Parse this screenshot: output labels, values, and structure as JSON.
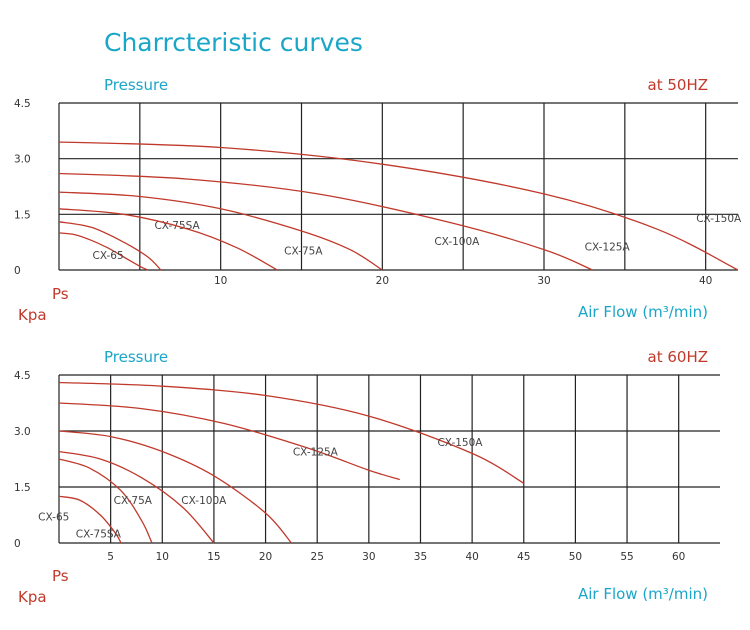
{
  "page_title": "Charrcteristic curves",
  "colors": {
    "title": "#1aa6c8",
    "axis_label_y_top": "#1aa6c8",
    "freq_label": "#c0392b",
    "unit_label": "#c0392b",
    "curve": "#c0392b",
    "grid": "#222222"
  },
  "chart_data": [
    {
      "type": "line",
      "freq_label": "at  50HZ",
      "ylabel": "Pressure",
      "ylabel_unit": "Ps",
      "ylabel_unit2": "Kpa",
      "xlabel": "Air Flow (m³/min)",
      "xlim": [
        0,
        42
      ],
      "ylim": [
        0,
        4.5
      ],
      "x_ticks": [
        "10",
        "20",
        "30",
        "40"
      ],
      "x_tick_values": [
        10,
        20,
        30,
        40
      ],
      "y_ticks": [
        "4.5",
        "3.0",
        "1.5",
        "0"
      ],
      "y_tick_values": [
        4.5,
        3.0,
        1.5,
        0
      ],
      "grid": true,
      "series": [
        {
          "name": "CX-65",
          "x": [
            0,
            1,
            2,
            3,
            4,
            5,
            5.5
          ],
          "y": [
            1.0,
            0.95,
            0.8,
            0.6,
            0.35,
            0.1,
            0
          ],
          "label_at": [
            4.0,
            0.3
          ]
        },
        {
          "name": "CX-75SA",
          "x": [
            0,
            2,
            4,
            5.5,
            6.3
          ],
          "y": [
            1.3,
            1.15,
            0.75,
            0.35,
            0
          ],
          "label_at": [
            8.7,
            1.1
          ]
        },
        {
          "name": "CX-75A",
          "x": [
            0,
            4,
            8,
            11,
            13.5
          ],
          "y": [
            1.65,
            1.5,
            1.1,
            0.6,
            0
          ],
          "label_at": [
            16.3,
            0.42
          ]
        },
        {
          "name": "CX-100A",
          "x": [
            0,
            5,
            10,
            15,
            18,
            20
          ],
          "y": [
            2.1,
            1.98,
            1.65,
            1.05,
            0.55,
            0
          ],
          "label_at": [
            26.0,
            0.68
          ]
        },
        {
          "name": "CX-125A",
          "x": [
            0,
            8,
            16,
            24,
            30,
            33
          ],
          "y": [
            2.6,
            2.45,
            2.05,
            1.3,
            0.55,
            0
          ],
          "label_at": [
            35.3,
            0.53
          ]
        },
        {
          "name": "CX-150A",
          "x": [
            0,
            10,
            20,
            30,
            37,
            42
          ],
          "y": [
            3.45,
            3.3,
            2.85,
            2.05,
            1.1,
            0
          ],
          "label_at": [
            42.2,
            1.3
          ]
        }
      ]
    },
    {
      "type": "line",
      "freq_label": "at  60HZ",
      "ylabel": "Pressure",
      "ylabel_unit": "Ps",
      "ylabel_unit2": "Kpa",
      "xlabel": "Air Flow (m³/min)",
      "xlim": [
        0,
        64
      ],
      "ylim": [
        0,
        4.5
      ],
      "x_ticks": [
        "5",
        "10",
        "15",
        "20",
        "25",
        "30",
        "35",
        "40",
        "45",
        "50",
        "55",
        "60"
      ],
      "x_tick_values": [
        5,
        10,
        15,
        20,
        25,
        30,
        35,
        40,
        45,
        50,
        55,
        60
      ],
      "y_ticks": [
        "4.5",
        "3.0",
        "1.5",
        "0"
      ],
      "y_tick_values": [
        4.5,
        3.0,
        1.5,
        0
      ],
      "grid": true,
      "series": [
        {
          "name": "CX-65",
          "x": [
            0,
            2,
            4,
            5.5,
            6
          ],
          "y": [
            1.25,
            1.15,
            0.75,
            0.25,
            0
          ],
          "label_at": [
            1.0,
            0.6
          ]
        },
        {
          "name": "CX-75SA",
          "x": [
            0,
            3,
            6,
            8,
            9
          ],
          "y": [
            2.25,
            2.0,
            1.4,
            0.6,
            0
          ],
          "label_at": [
            6.0,
            0.15
          ]
        },
        {
          "name": "CX-75A",
          "x": [
            0,
            4,
            8,
            12,
            15
          ],
          "y": [
            2.45,
            2.25,
            1.75,
            0.95,
            0
          ],
          "label_at": [
            9.0,
            1.05
          ]
        },
        {
          "name": "CX-100A",
          "x": [
            0,
            5,
            10,
            15,
            20,
            22.5
          ],
          "y": [
            3.0,
            2.85,
            2.45,
            1.8,
            0.8,
            0
          ],
          "label_at": [
            16.2,
            1.05
          ]
        },
        {
          "name": "CX-125A",
          "x": [
            0,
            8,
            16,
            24,
            30,
            33
          ],
          "y": [
            3.75,
            3.6,
            3.2,
            2.55,
            1.95,
            1.7
          ],
          "label_at": [
            27.0,
            2.35
          ]
        },
        {
          "name": "CX-150A",
          "x": [
            0,
            10,
            20,
            30,
            40,
            45
          ],
          "y": [
            4.3,
            4.2,
            3.95,
            3.4,
            2.4,
            1.6
          ],
          "label_at": [
            41.0,
            2.6
          ]
        }
      ]
    }
  ]
}
